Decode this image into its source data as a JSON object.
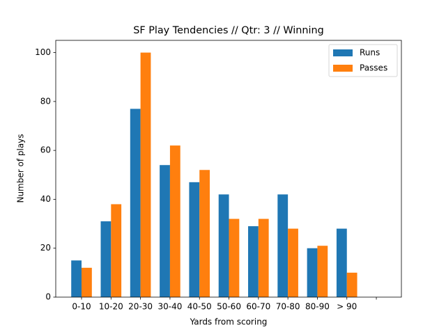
{
  "chart_data": {
    "type": "bar",
    "title": "SF Play Tendencies // Qtr: 3 // Winning",
    "x_label": "Yards from scoring",
    "y_label": "Number of plays",
    "categories": [
      "0-10",
      "10-20",
      "20-30",
      "30-40",
      "40-50",
      "50-60",
      "60-70",
      "70-80",
      "80-90",
      "> 90",
      null
    ],
    "series": [
      {
        "name": "Runs",
        "color": "#1f77b4",
        "values": [
          15,
          31,
          77,
          54,
          47,
          42,
          29,
          42,
          20,
          28,
          null
        ]
      },
      {
        "name": "Passes",
        "color": "#ff7f0e",
        "values": [
          12,
          38,
          100,
          62,
          52,
          32,
          32,
          28,
          21,
          10,
          null
        ]
      }
    ],
    "ylim": [
      0,
      105
    ],
    "yticks": [
      0,
      20,
      40,
      60,
      80,
      100
    ],
    "legend": "upper right",
    "grid": false
  }
}
